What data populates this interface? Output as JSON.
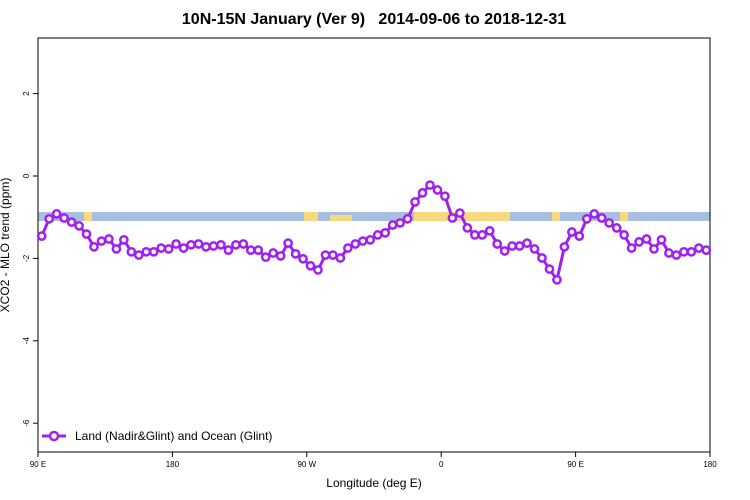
{
  "chart_data": {
    "type": "line",
    "title": "10N-15N January (Ver 9)   2014-09-06 to 2018-12-31",
    "x_label": "Longitude (deg E)",
    "y_label": "XCO2 - MLO trend (ppm)",
    "xlim": [
      90,
      540
    ],
    "ylim": [
      -6.7,
      3.35
    ],
    "xticks": [
      {
        "value": 90,
        "label": "90 E"
      },
      180,
      {
        "value": 270,
        "label": "90 W"
      },
      {
        "value": 360,
        "label": "0"
      },
      {
        "value": 450,
        "label": "90 E"
      },
      {
        "value": 540,
        "label": "180"
      }
    ],
    "yticks": [
      2,
      0,
      -2,
      -4,
      -6
    ],
    "x": [
      92.5,
      97.5,
      102.5,
      107.5,
      112.5,
      117.5,
      122.5,
      127.5,
      132.5,
      137.5,
      142.5,
      147.5,
      152.5,
      157.5,
      162.5,
      167.5,
      172.5,
      177.5,
      182.5,
      187.5,
      192.5,
      197.5,
      202.5,
      207.5,
      212.5,
      217.5,
      222.5,
      227.5,
      232.5,
      237.5,
      242.5,
      247.5,
      252.5,
      257.5,
      262.5,
      267.5,
      272.5,
      277.5,
      282.5,
      287.5,
      292.5,
      297.5,
      302.5,
      307.5,
      312.5,
      317.5,
      322.5,
      327.5,
      332.5,
      337.5,
      342.5,
      347.5,
      352.5,
      357.5,
      362.5,
      367.5,
      372.5,
      377.5,
      382.5,
      387.5,
      392.5,
      397.5,
      402.5,
      407.5,
      412.5,
      417.5,
      422.5,
      427.5,
      432.5,
      437.5,
      442.5,
      447.5,
      452.5,
      457.5,
      462.5,
      467.5,
      472.5,
      477.5,
      482.5,
      487.5,
      492.5,
      497.5,
      502.5,
      507.5,
      512.5,
      517.5,
      522.5,
      527.5,
      532.5,
      537.5
    ],
    "series": [
      {
        "name": "Land (Nadir&Glint) and Ocean (Glint)",
        "color": "#a020f0",
        "values": [
          -1.46,
          -1.04,
          -0.92,
          -1.02,
          -1.12,
          -1.21,
          -1.41,
          -1.72,
          -1.58,
          -1.53,
          -1.77,
          -1.55,
          -1.84,
          -1.92,
          -1.84,
          -1.84,
          -1.75,
          -1.77,
          -1.65,
          -1.75,
          -1.67,
          -1.65,
          -1.72,
          -1.7,
          -1.67,
          -1.8,
          -1.67,
          -1.65,
          -1.8,
          -1.8,
          -1.97,
          -1.87,
          -1.94,
          -1.63,
          -1.89,
          -2.01,
          -2.18,
          -2.28,
          -1.92,
          -1.92,
          -1.99,
          -1.75,
          -1.65,
          -1.58,
          -1.55,
          -1.43,
          -1.38,
          -1.19,
          -1.14,
          -1.04,
          -0.63,
          -0.41,
          -0.22,
          -0.34,
          -0.49,
          -1.02,
          -0.9,
          -1.26,
          -1.43,
          -1.43,
          -1.33,
          -1.65,
          -1.82,
          -1.7,
          -1.7,
          -1.63,
          -1.77,
          -1.99,
          -2.26,
          -2.52,
          -1.72,
          -1.36,
          -1.46,
          -1.04,
          -0.92,
          -1.02,
          -1.14,
          -1.26,
          -1.43,
          -1.75,
          -1.6,
          -1.53,
          -1.77,
          -1.55,
          -1.87,
          -1.92,
          -1.84,
          -1.84,
          -1.75,
          -1.8
        ]
      }
    ]
  }
}
